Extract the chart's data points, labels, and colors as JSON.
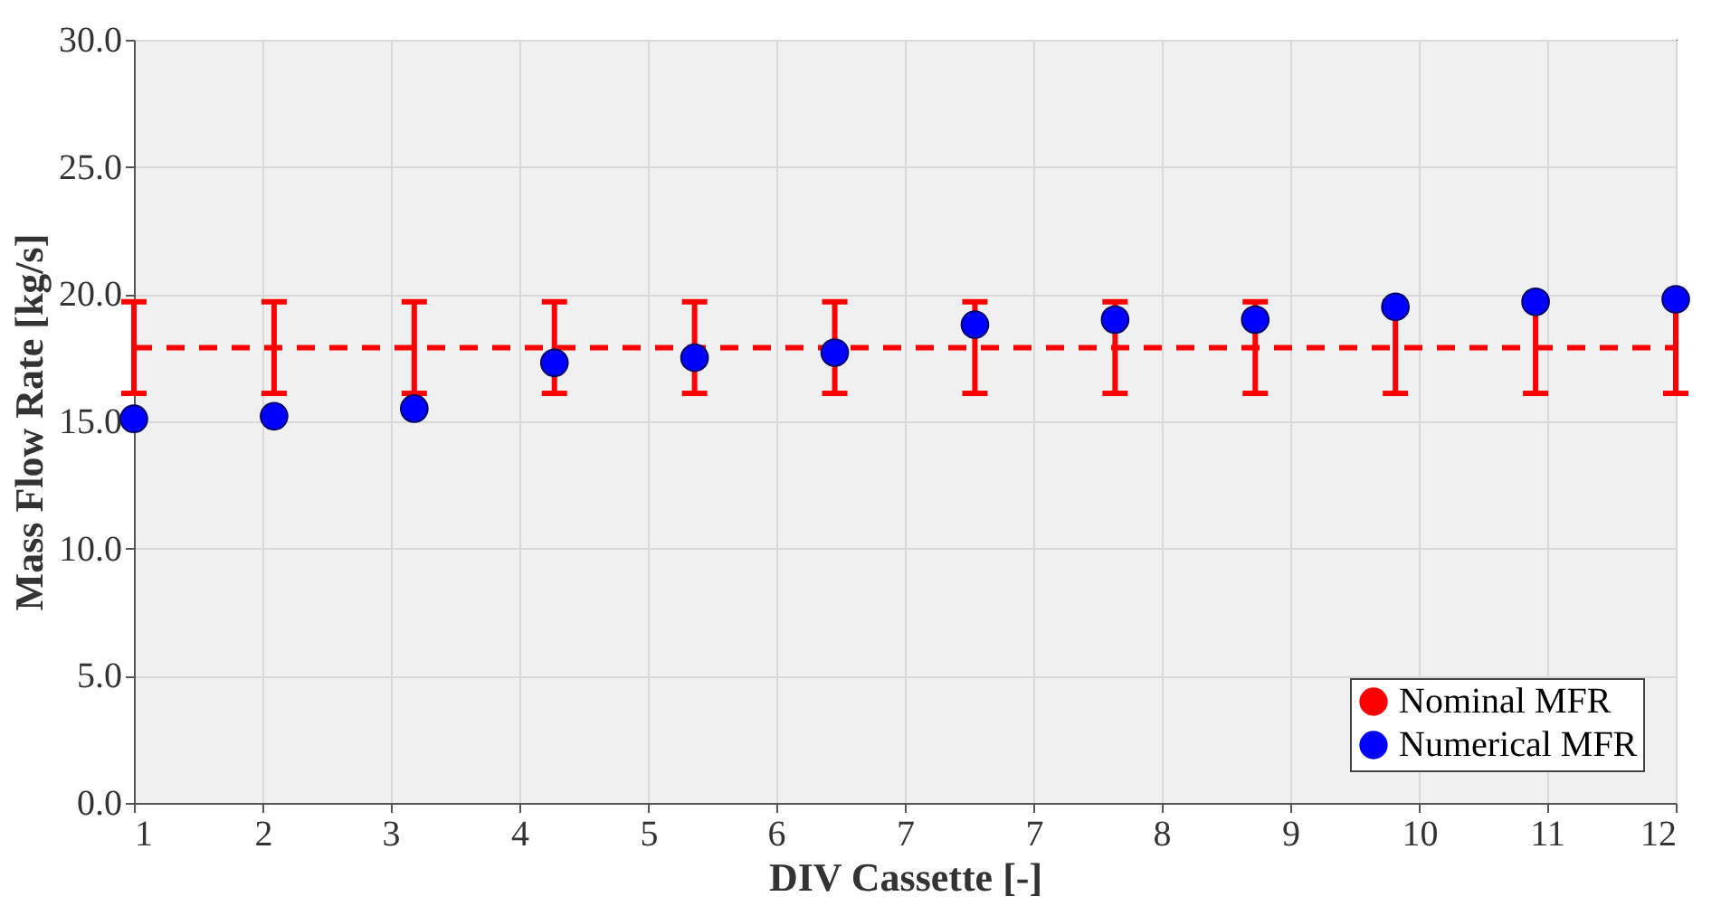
{
  "chart_data": {
    "type": "line",
    "xlabel": "DIV Cassette [-]",
    "ylabel": "Mass Flow Rate [kg/s]",
    "x": [
      1,
      2,
      3,
      4,
      5,
      6,
      7,
      8,
      9,
      10,
      11,
      12
    ],
    "series": [
      {
        "name": "Nominal MFR",
        "color": "#ff0000",
        "line_style": "dashed",
        "marker": "none",
        "values": [
          17.9,
          17.9,
          17.9,
          17.9,
          17.9,
          17.9,
          17.9,
          17.9,
          17.9,
          17.9,
          17.9,
          17.9
        ],
        "errors": [
          1.8,
          1.8,
          1.8,
          1.8,
          1.8,
          1.8,
          1.8,
          1.8,
          1.8,
          1.8,
          1.8,
          1.8
        ]
      },
      {
        "name": "Numerical MFR",
        "type": "scatter",
        "color": "#0000ff",
        "marker": "circle",
        "values": [
          15.1,
          15.2,
          15.5,
          17.3,
          17.5,
          17.7,
          18.8,
          19.0,
          19.0,
          19.5,
          19.7,
          19.8
        ]
      }
    ],
    "xlim": [
      1,
      12
    ],
    "xticks": [
      1,
      {
        "value": 1.92,
        "label": "2"
      },
      {
        "value": 2.83,
        "label": "3"
      },
      {
        "value": 3.75,
        "label": "4"
      },
      {
        "value": 4.67,
        "label": "5"
      },
      {
        "value": 5.58,
        "label": "6"
      },
      {
        "value": 6.5,
        "label": "7"
      },
      {
        "value": 7.42,
        "label": "7"
      },
      {
        "value": 8.33,
        "label": "8"
      },
      {
        "value": 9.25,
        "label": "9"
      },
      {
        "value": 10.17,
        "label": "10"
      },
      {
        "value": 11.08,
        "label": "11"
      },
      12
    ],
    "ylim": [
      0,
      30
    ],
    "yticks": [
      {
        "value": 0,
        "label": "0.0"
      },
      {
        "value": 5,
        "label": "5.0"
      },
      {
        "value": 10,
        "label": "10.0"
      },
      {
        "value": 15,
        "label": "15.0"
      },
      {
        "value": 20,
        "label": "20.0"
      },
      {
        "value": 25,
        "label": "25.0"
      },
      {
        "value": 30,
        "label": "30.0"
      }
    ],
    "grid": true,
    "legend": "bottom right"
  }
}
